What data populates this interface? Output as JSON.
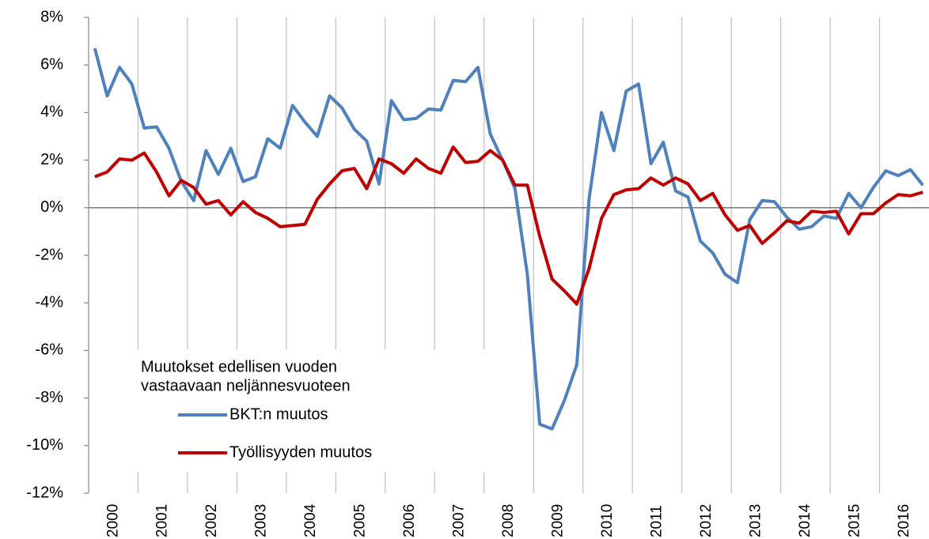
{
  "chart_data": {
    "type": "line",
    "categories": [
      "2000",
      null,
      null,
      null,
      "2001",
      null,
      null,
      null,
      "2002",
      null,
      null,
      null,
      "2003",
      null,
      null,
      null,
      "2004",
      null,
      null,
      null,
      "2005",
      null,
      null,
      null,
      "2006",
      null,
      null,
      null,
      "2007",
      null,
      null,
      null,
      "2008",
      null,
      null,
      null,
      "2009",
      null,
      null,
      null,
      "2010",
      null,
      null,
      null,
      "2011",
      null,
      null,
      null,
      "2012",
      null,
      null,
      null,
      "2013",
      null,
      null,
      null,
      "2014",
      null,
      null,
      null,
      "2015",
      null,
      null,
      null,
      "2016",
      null,
      null,
      null
    ],
    "series": [
      {
        "name": "BKT:n muutos",
        "color": "#4f81bd",
        "values": [
          6.7,
          4.7,
          5.9,
          5.2,
          3.35,
          3.4,
          2.5,
          1.1,
          0.3,
          2.4,
          1.4,
          2.5,
          1.1,
          1.3,
          2.9,
          2.5,
          4.3,
          3.6,
          3.0,
          4.7,
          4.2,
          3.3,
          2.8,
          1.0,
          4.5,
          3.7,
          3.75,
          4.15,
          4.1,
          5.35,
          5.3,
          5.9,
          3.1,
          2.0,
          0.8,
          -2.8,
          -9.1,
          -9.3,
          -8.1,
          -6.6,
          0.4,
          4.0,
          2.4,
          4.9,
          5.2,
          1.85,
          2.75,
          0.7,
          0.45,
          -1.4,
          -1.9,
          -2.8,
          -3.15,
          -0.5,
          0.3,
          0.25,
          -0.4,
          -0.9,
          -0.8,
          -0.35,
          -0.45,
          0.6,
          0.0,
          0.85,
          1.55,
          1.35,
          1.6,
          0.95
        ]
      },
      {
        "name": "Työllisyyden muutos",
        "color": "#c00000",
        "values": [
          1.3,
          1.5,
          2.05,
          2.0,
          2.3,
          1.5,
          0.5,
          1.15,
          0.85,
          0.15,
          0.3,
          -0.3,
          0.25,
          -0.2,
          -0.45,
          -0.8,
          -0.75,
          -0.7,
          0.35,
          1.0,
          1.55,
          1.65,
          0.8,
          2.05,
          1.85,
          1.45,
          2.05,
          1.65,
          1.45,
          2.55,
          1.9,
          1.95,
          2.4,
          2.0,
          0.95,
          0.95,
          -1.2,
          -3.0,
          -3.5,
          -4.05,
          -2.55,
          -0.45,
          0.55,
          0.75,
          0.8,
          1.25,
          0.95,
          1.25,
          1.0,
          0.3,
          0.6,
          -0.3,
          -0.95,
          -0.75,
          -1.5,
          -1.05,
          -0.55,
          -0.65,
          -0.15,
          -0.2,
          -0.15,
          -1.1,
          -0.25,
          -0.25,
          0.2,
          0.55,
          0.5,
          0.65
        ]
      }
    ],
    "legend_title": [
      "Muutokset edellisen vuoden",
      "vastaavaan neljännesvuoteen"
    ],
    "ylim": [
      -12,
      8
    ],
    "yticks": [
      {
        "value": 8,
        "label": "8%"
      },
      {
        "value": 6,
        "label": "6%"
      },
      {
        "value": 4,
        "label": "4%"
      },
      {
        "value": 2,
        "label": "2%"
      },
      {
        "value": 0,
        "label": "0%"
      },
      {
        "value": -2,
        "label": "-2%"
      },
      {
        "value": -4,
        "label": "-4%"
      },
      {
        "value": -6,
        "label": "-6%"
      },
      {
        "value": -8,
        "label": "-8%"
      },
      {
        "value": -10,
        "label": "-10%"
      },
      {
        "value": -12,
        "label": "-12%"
      }
    ],
    "grid": true
  }
}
